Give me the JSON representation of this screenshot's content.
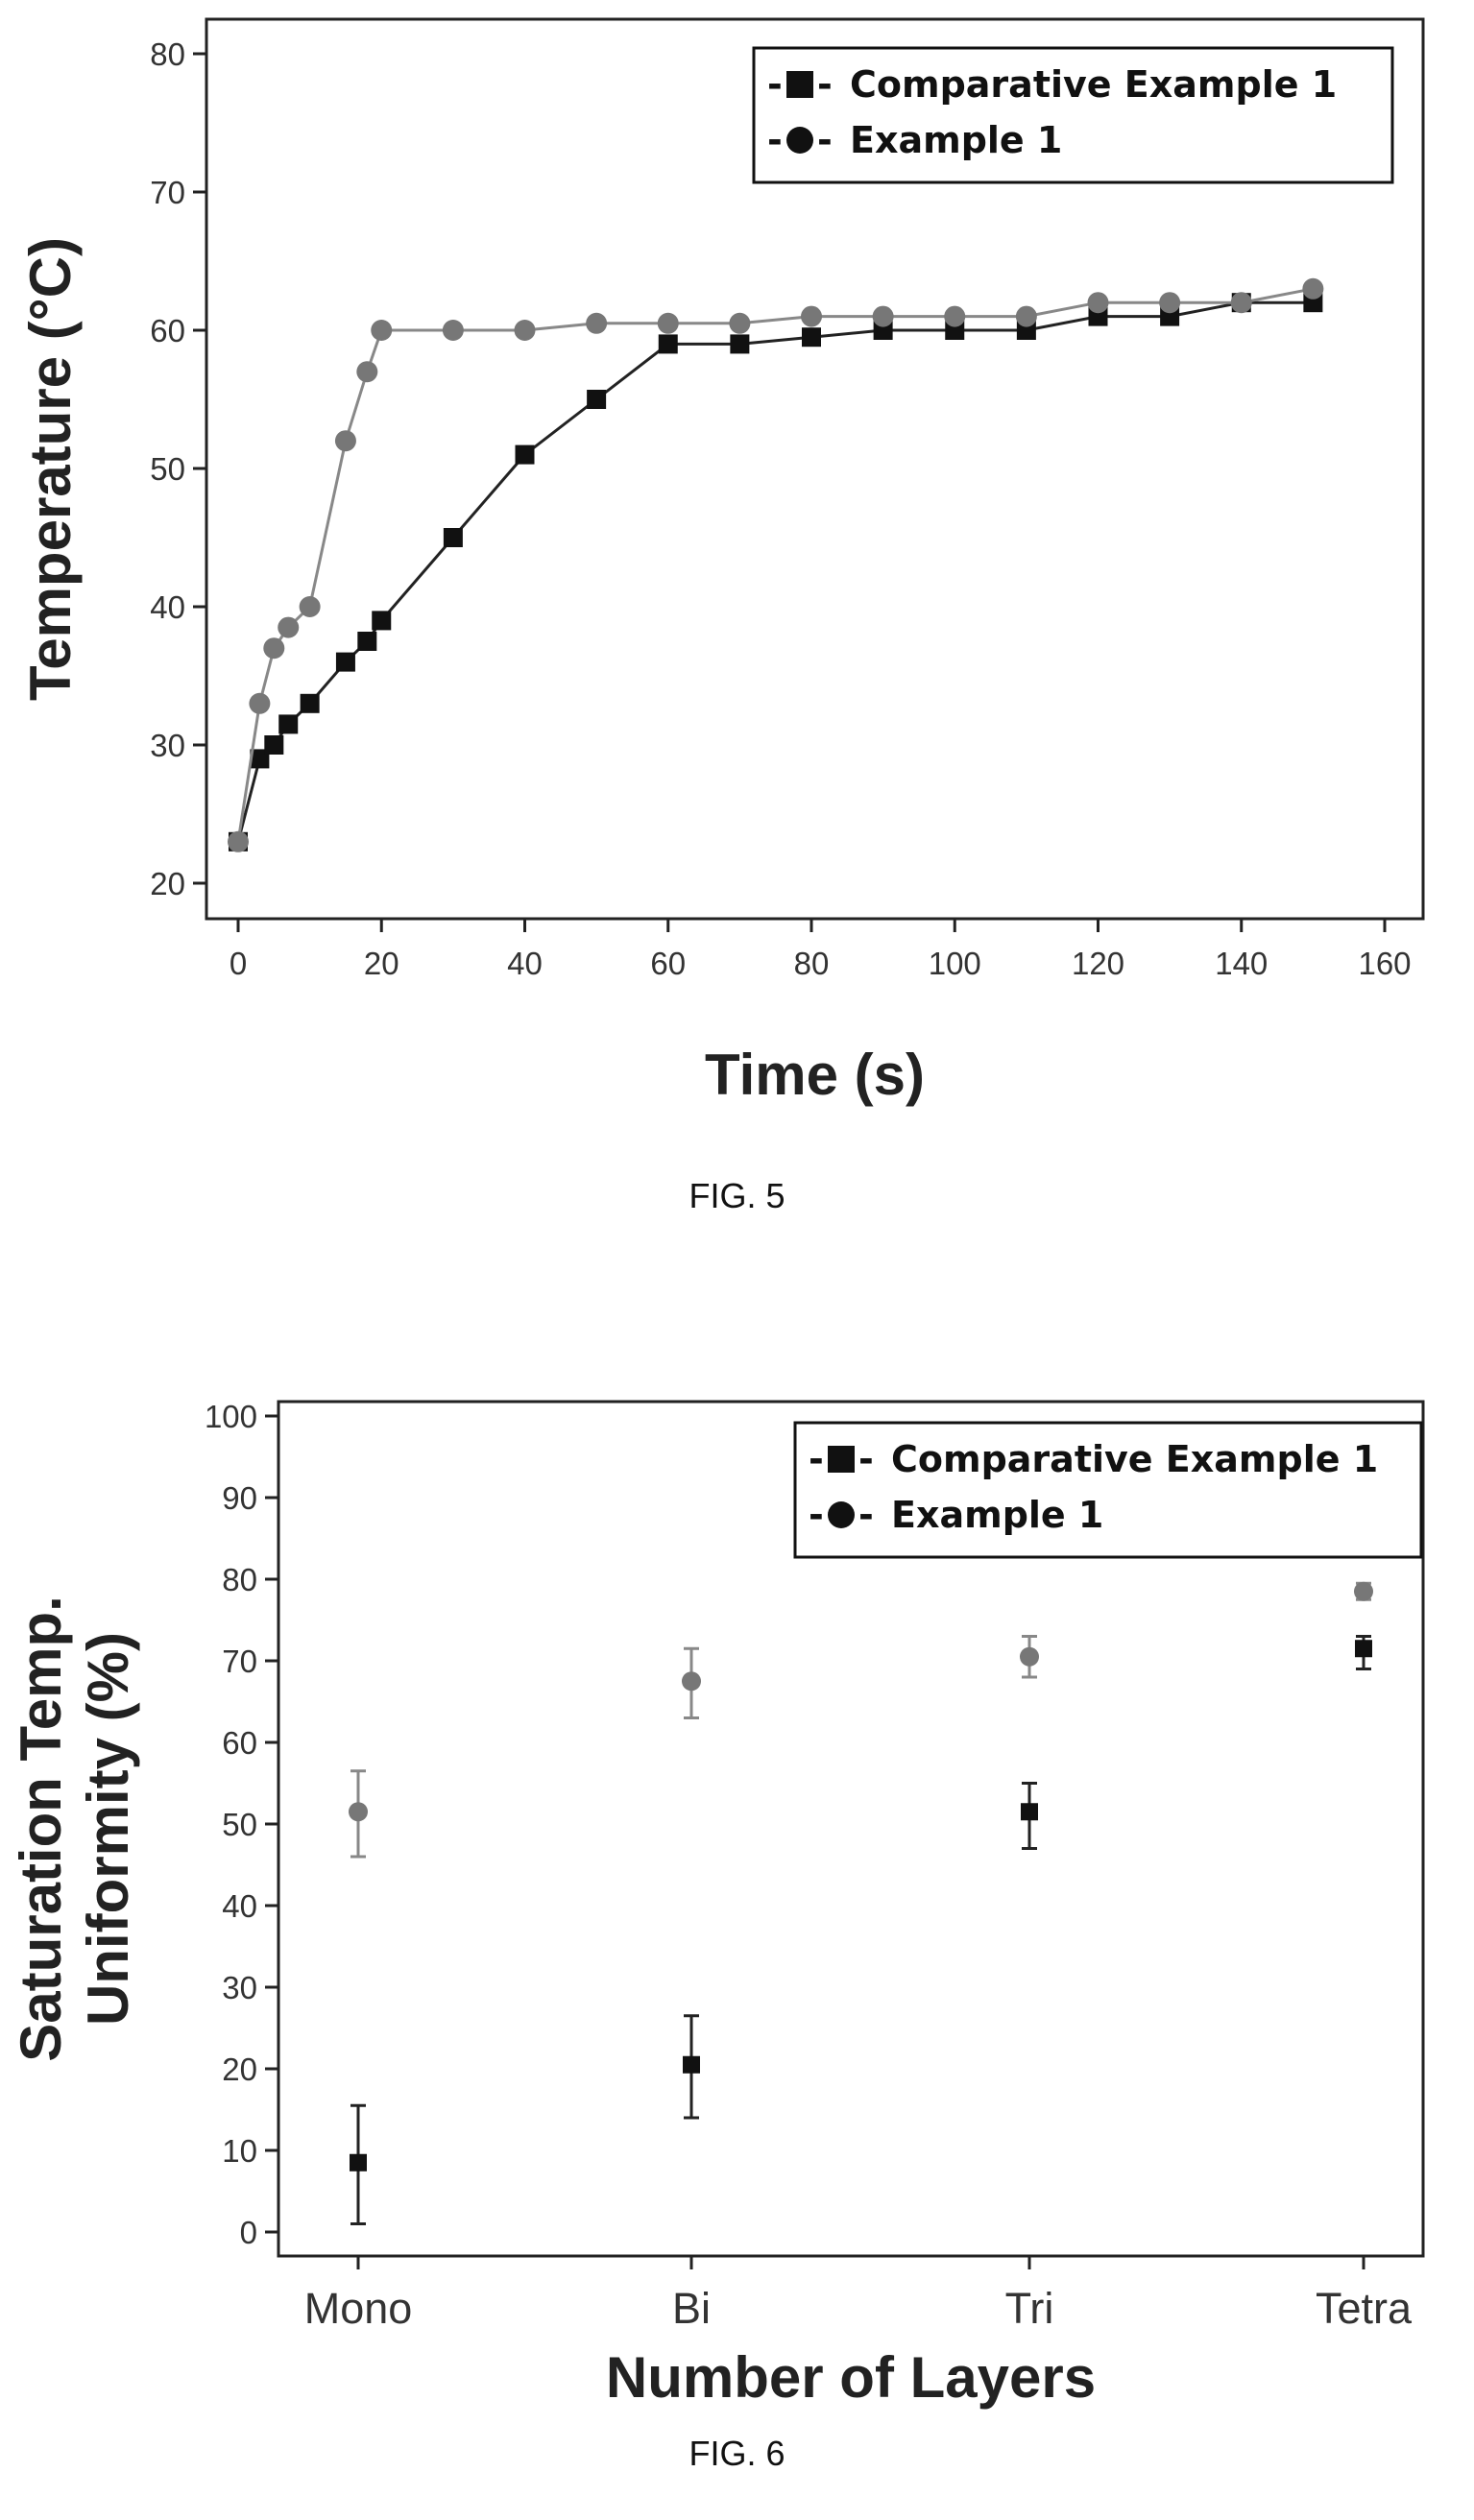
{
  "chart_data": [
    {
      "type": "line",
      "title": "",
      "xlabel": "Time (s)",
      "ylabel": "Temperature (°C)",
      "xlim": [
        -3,
        160
      ],
      "ylim": [
        18,
        82
      ],
      "xticks": [
        0,
        20,
        40,
        60,
        80,
        100,
        120,
        140,
        160
      ],
      "yticks": [
        20,
        30,
        40,
        50,
        60,
        70,
        80
      ],
      "legend_position": "top-right",
      "series": [
        {
          "name": "Comparative Example 1",
          "marker": "square",
          "color": "#111111",
          "x": [
            0,
            3,
            5,
            7,
            10,
            15,
            18,
            20,
            30,
            40,
            50,
            60,
            70,
            80,
            90,
            100,
            110,
            120,
            130,
            140,
            150
          ],
          "y": [
            23,
            29,
            30,
            31.5,
            33,
            36,
            37.5,
            39,
            45,
            51,
            55,
            59,
            59,
            59.5,
            60,
            60,
            60,
            61,
            61,
            62,
            62
          ]
        },
        {
          "name": "Example 1",
          "marker": "circle",
          "color": "#777777",
          "x": [
            0,
            3,
            5,
            7,
            10,
            15,
            18,
            20,
            30,
            40,
            50,
            60,
            70,
            80,
            90,
            100,
            110,
            120,
            130,
            140,
            150
          ],
          "y": [
            23,
            33,
            37,
            38.5,
            40,
            52,
            57,
            60,
            60,
            60,
            60.5,
            60.5,
            60.5,
            61,
            61,
            61,
            61,
            62,
            62,
            62,
            63
          ]
        }
      ]
    },
    {
      "type": "scatter",
      "title": "",
      "xlabel": "Number of Layers",
      "ylabel_line1": "Saturation Temp.",
      "ylabel_line2": "Uniformity (%)",
      "categories": [
        "Mono",
        "Bi",
        "Tri",
        "Tetra"
      ],
      "ylim": [
        -2,
        102
      ],
      "yticks": [
        0,
        10,
        20,
        30,
        40,
        50,
        60,
        70,
        80,
        90,
        100
      ],
      "legend_position": "top-right",
      "series": [
        {
          "name": "Comparative Example 1",
          "marker": "square",
          "color": "#111111",
          "values": [
            8.5,
            20.5,
            51.5,
            71.5
          ],
          "error_low": [
            1,
            14,
            47,
            69
          ],
          "error_high": [
            15.5,
            26.5,
            55,
            73
          ]
        },
        {
          "name": "Example 1",
          "marker": "circle",
          "color": "#777777",
          "values": [
            51.5,
            67.5,
            70.5,
            78.5
          ],
          "error_low": [
            46,
            63,
            68,
            77.5
          ],
          "error_high": [
            56.5,
            71.5,
            73,
            79.5
          ]
        }
      ]
    }
  ],
  "captions": {
    "fig5": "FIG. 5",
    "fig6": "FIG. 6"
  },
  "legend": {
    "prefix": "-",
    "suffix": "-"
  }
}
